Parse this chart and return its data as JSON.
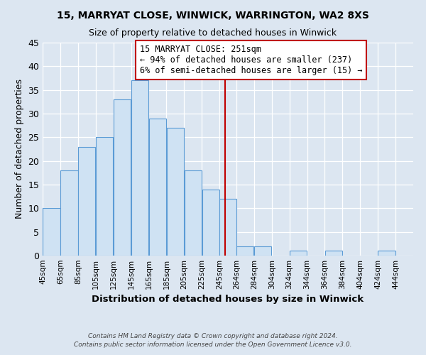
{
  "title": "15, MARRYAT CLOSE, WINWICK, WARRINGTON, WA2 8XS",
  "subtitle": "Size of property relative to detached houses in Winwick",
  "xlabel": "Distribution of detached houses by size in Winwick",
  "ylabel": "Number of detached properties",
  "bin_edges": [
    45,
    65,
    85,
    105,
    125,
    145,
    165,
    185,
    205,
    225,
    245,
    264,
    284,
    304,
    324,
    344,
    364,
    384,
    404,
    424,
    444,
    464
  ],
  "bin_labels": [
    "45sqm",
    "65sqm",
    "85sqm",
    "105sqm",
    "125sqm",
    "145sqm",
    "165sqm",
    "185sqm",
    "205sqm",
    "225sqm",
    "245sqm",
    "264sqm",
    "284sqm",
    "304sqm",
    "324sqm",
    "344sqm",
    "364sqm",
    "384sqm",
    "404sqm",
    "424sqm",
    "444sqm"
  ],
  "bar_values": [
    10,
    18,
    23,
    25,
    33,
    37,
    29,
    27,
    18,
    14,
    12,
    2,
    2,
    0,
    1,
    0,
    1,
    0,
    0,
    1,
    0
  ],
  "bar_color": "#cfe2f3",
  "bar_edge_color": "#5b9bd5",
  "red_line_x": 251,
  "annotation_title": "15 MARRYAT CLOSE: 251sqm",
  "annotation_line1": "← 94% of detached houses are smaller (237)",
  "annotation_line2": "6% of semi-detached houses are larger (15) →",
  "annotation_box_color": "#ffffff",
  "annotation_box_edge": "#c00000",
  "ylim": [
    0,
    45
  ],
  "yticks": [
    0,
    5,
    10,
    15,
    20,
    25,
    30,
    35,
    40,
    45
  ],
  "background_color": "#dce6f1",
  "grid_color": "#ffffff",
  "footer_line1": "Contains HM Land Registry data © Crown copyright and database right 2024.",
  "footer_line2": "Contains public sector information licensed under the Open Government Licence v3.0."
}
